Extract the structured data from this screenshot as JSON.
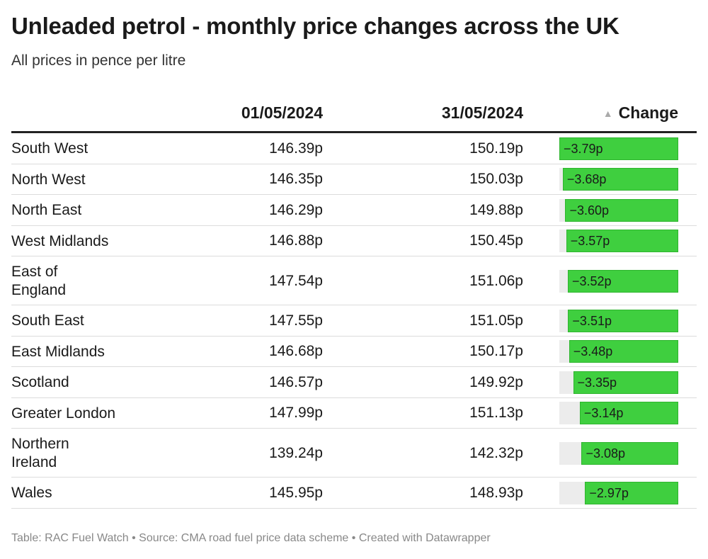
{
  "title": "Unleaded petrol - monthly price changes across the UK",
  "subtitle": "All prices in pence per litre",
  "footer": "Table: RAC Fuel Watch • Source: CMA road fuel price data scheme • Created with Datawrapper",
  "colors": {
    "bar": "#3fcf3f",
    "track": "#ececec",
    "header_rule": "#222222"
  },
  "chart_data": {
    "type": "table",
    "columns": [
      "",
      "01/05/2024",
      "31/05/2024",
      "Change"
    ],
    "sort": {
      "column": "Change",
      "indicator": "▲"
    },
    "change_range": [
      -3.79,
      0
    ],
    "rows": [
      {
        "region": "South West",
        "start": "146.39p",
        "end": "150.19p",
        "change": -3.79,
        "change_label": "−3.79p"
      },
      {
        "region": "North West",
        "start": "146.35p",
        "end": "150.03p",
        "change": -3.68,
        "change_label": "−3.68p"
      },
      {
        "region": "North East",
        "start": "146.29p",
        "end": "149.88p",
        "change": -3.6,
        "change_label": "−3.60p"
      },
      {
        "region": "West Midlands",
        "start": "146.88p",
        "end": "150.45p",
        "change": -3.57,
        "change_label": "−3.57p"
      },
      {
        "region": "East of\nEngland",
        "start": "147.54p",
        "end": "151.06p",
        "change": -3.52,
        "change_label": "−3.52p"
      },
      {
        "region": "South East",
        "start": "147.55p",
        "end": "151.05p",
        "change": -3.51,
        "change_label": "−3.51p"
      },
      {
        "region": "East Midlands",
        "start": "146.68p",
        "end": "150.17p",
        "change": -3.48,
        "change_label": "−3.48p"
      },
      {
        "region": "Scotland",
        "start": "146.57p",
        "end": "149.92p",
        "change": -3.35,
        "change_label": "−3.35p"
      },
      {
        "region": "Greater London",
        "start": "147.99p",
        "end": "151.13p",
        "change": -3.14,
        "change_label": "−3.14p"
      },
      {
        "region": "Northern\nIreland",
        "start": "139.24p",
        "end": "142.32p",
        "change": -3.08,
        "change_label": "−3.08p"
      },
      {
        "region": "Wales",
        "start": "145.95p",
        "end": "148.93p",
        "change": -2.97,
        "change_label": "−2.97p"
      }
    ]
  }
}
